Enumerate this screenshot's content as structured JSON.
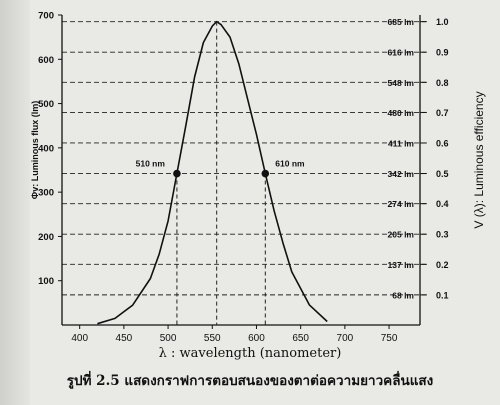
{
  "chart_data": {
    "type": "line",
    "xlabel": "λ : wavelength  (nanometer)",
    "ylabel_left": "Φv: Luminous flux (lm)",
    "ylabel_right": "V (λ): Luminous efficiency",
    "xlim": [
      380,
      785
    ],
    "ylim": [
      0,
      700
    ],
    "x_ticks": [
      "400",
      "450",
      "500",
      "550",
      "600",
      "650",
      "700",
      "750"
    ],
    "x_tick_values": [
      400,
      450,
      500,
      550,
      600,
      650,
      700,
      750
    ],
    "y_ticks": [
      "100",
      "200",
      "300",
      "400",
      "500",
      "600",
      "700"
    ],
    "y_tick_values": [
      100,
      200,
      300,
      400,
      500,
      600,
      700
    ],
    "right_lm_labels": [
      "685 lm",
      "616 lm",
      "548 lm",
      "480 lm",
      "411 lm",
      "342 lm",
      "274 lm",
      "205 lm",
      "137 lm",
      "68 lm"
    ],
    "right_eff_labels": [
      "1.0",
      "0.9",
      "0.8",
      "0.7",
      "0.6",
      "0.5",
      "0.4",
      "0.3",
      "0.2",
      "0.1"
    ],
    "right_values": [
      685,
      616,
      548,
      480,
      411,
      342,
      274,
      205,
      137,
      68
    ],
    "grid": "horizontal dashed at efficiency steps",
    "series": [
      {
        "x": [
          420,
          440,
          460,
          480,
          490,
          500,
          510,
          520,
          530,
          540,
          550,
          555,
          560,
          570,
          580,
          590,
          600,
          610,
          620,
          630,
          640,
          660,
          680
        ],
        "y": [
          3,
          15,
          45,
          105,
          160,
          235,
          342,
          450,
          560,
          638,
          675,
          685,
          678,
          650,
          590,
          510,
          430,
          342,
          258,
          185,
          120,
          45,
          8
        ]
      }
    ],
    "annotations": [
      {
        "text": "510 nm",
        "x": 510,
        "y": 342
      },
      {
        "text": "610 nm",
        "x": 610,
        "y": 342
      }
    ],
    "peak_marker_x": 555
  },
  "caption": "รูปที่ 2.5   แสดงกราฟการตอบสนองของตาต่อความยาวคลื่นแสง"
}
